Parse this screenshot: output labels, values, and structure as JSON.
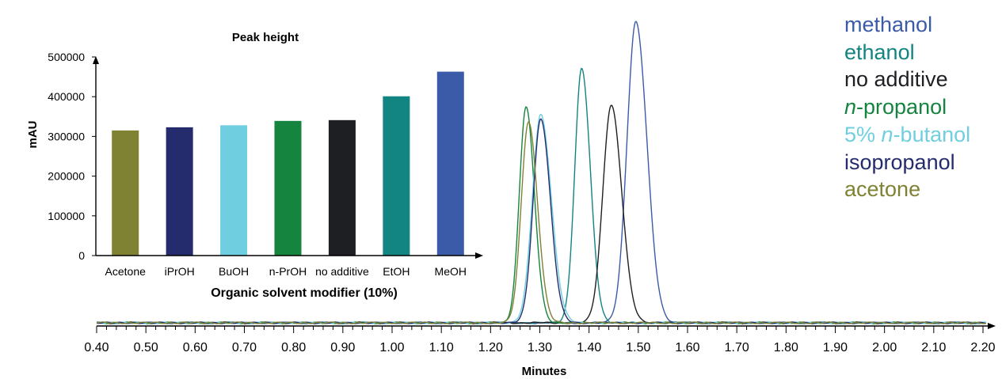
{
  "chart_data": [
    {
      "type": "line",
      "xlabel": "Minutes",
      "ylabel": "",
      "xlim": [
        0.4,
        2.2
      ],
      "ylim": [
        0,
        800000
      ],
      "x_ticks": [
        "0.40",
        "0.50",
        "0.60",
        "0.70",
        "0.80",
        "0.90",
        "1.00",
        "1.10",
        "1.20",
        "1.30",
        "1.40",
        "1.50",
        "1.60",
        "1.70",
        "1.80",
        "1.90",
        "2.00",
        "2.10",
        "2.20"
      ],
      "series": [
        {
          "name": "methanol",
          "color": "#3b5ba8",
          "peak_time": 1.495,
          "peak_height": 780000,
          "width": 0.018
        },
        {
          "name": "ethanol",
          "color": "#128481",
          "peak_time": 1.385,
          "peak_height": 660000,
          "width": 0.014
        },
        {
          "name": "no additive",
          "color": "#1e1f23",
          "peak_time": 1.445,
          "peak_height": 565000,
          "width": 0.017
        },
        {
          "name": "n-propanol",
          "color": "#15843e",
          "peak_time": 1.272,
          "peak_height": 560000,
          "width": 0.0135
        },
        {
          "name": "5% n-butanol",
          "color": "#6fcfe0",
          "peak_time": 1.302,
          "peak_height": 540000,
          "width": 0.017
        },
        {
          "name": "isopropanol",
          "color": "#252c6e",
          "peak_time": 1.302,
          "peak_height": 530000,
          "width": 0.0155
        },
        {
          "name": "acetone",
          "color": "#7f8232",
          "peak_time": 1.277,
          "peak_height": 522000,
          "width": 0.0145
        }
      ],
      "legend_placement": "top-right"
    },
    {
      "type": "bar",
      "title": "Peak height",
      "xlabel": "Organic solvent modifier (10%)",
      "ylabel": "mAU",
      "ylim": [
        0,
        500000
      ],
      "y_ticks": [
        "0",
        "100000",
        "200000",
        "300000",
        "400000",
        "500000"
      ],
      "categories": [
        "Acetone",
        "iPrOH",
        "BuOH",
        "n-PrOH",
        "no additive",
        "EtOH",
        "MeOH"
      ],
      "values": [
        315000,
        323000,
        328000,
        339000,
        341000,
        401000,
        463000
      ],
      "colors": [
        "#7f8232",
        "#252c6e",
        "#6fcfe0",
        "#15843e",
        "#1e1f23",
        "#128481",
        "#3b5ba8"
      ]
    }
  ],
  "legend": [
    {
      "pre": "methanol",
      "ital": "",
      "post": "",
      "color": "#3b5ba8"
    },
    {
      "pre": "ethanol",
      "ital": "",
      "post": "",
      "color": "#128481"
    },
    {
      "pre": "no additive",
      "ital": "",
      "post": "",
      "color": "#1e1f23"
    },
    {
      "pre": "",
      "ital": "n",
      "post": "-propanol",
      "color": "#15843e"
    },
    {
      "pre": "5% ",
      "ital": "n",
      "post": "-butanol",
      "color": "#6fcfe0"
    },
    {
      "pre": "isopropanol",
      "ital": "",
      "post": "",
      "color": "#252c6e"
    },
    {
      "pre": "acetone",
      "ital": "",
      "post": "",
      "color": "#7f8232"
    }
  ]
}
